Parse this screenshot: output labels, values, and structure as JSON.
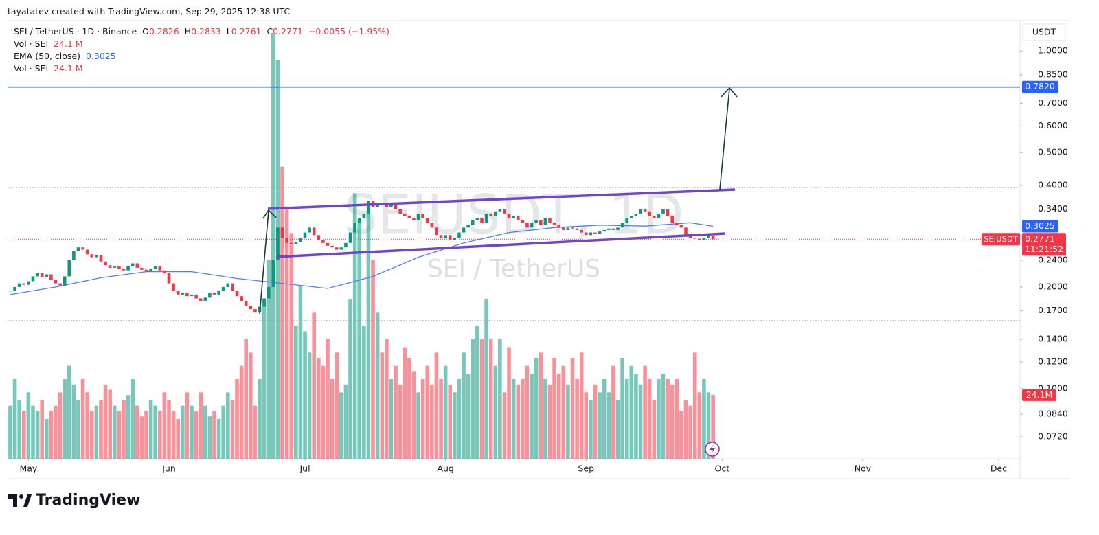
{
  "attribution": "tayatatev created with TradingView.com, Sep 29, 2025 12:38 UTC",
  "brand": "TradingView",
  "chart_data": {
    "type": "candlestick",
    "title": "SEI / TetherUS · 1D · Binance",
    "legend": {
      "o_label": "O",
      "open": "0.2826",
      "h_label": "H",
      "high": "0.2833",
      "l_label": "L",
      "low": "0.2761",
      "c_label": "C",
      "close": "0.2771",
      "change": "−0.0055 (−1.95%)",
      "vol_label": "Vol · SEI",
      "vol": "24.1 M",
      "ema_label": "EMA (50, close)",
      "ema": "0.3025",
      "vol2_label": "Vol · SEI",
      "vol2": "24.1 M"
    },
    "watermark": "SEIUSDT, 1D",
    "watermark_sub": "SEI / TetherUS",
    "currency": "USDT",
    "symbol_tag": "SEIUSDT",
    "countdown": "11:21:52",
    "log_scale": true,
    "grid": false,
    "xlim": [
      -0.6,
      222.7
    ],
    "xticks": [
      {
        "value": 4,
        "label": "May"
      },
      {
        "value": 35,
        "label": "Jun"
      },
      {
        "value": 65,
        "label": "Jul"
      },
      {
        "value": 96,
        "label": "Aug"
      },
      {
        "value": 127,
        "label": "Sep"
      },
      {
        "value": 157,
        "label": "Oct"
      },
      {
        "value": 188,
        "label": "Nov"
      },
      {
        "value": 218,
        "label": "Dec"
      }
    ],
    "ylim": [
      0.062,
      1.23
    ],
    "yticks": [
      {
        "value": 1,
        "label": "1.0000"
      },
      {
        "value": 0.85,
        "label": "0.8500"
      },
      {
        "value": 0.7,
        "label": "0.7000"
      },
      {
        "value": 0.6,
        "label": "0.6000"
      },
      {
        "value": 0.5,
        "label": "0.5000"
      },
      {
        "value": 0.4,
        "label": "0.4000"
      },
      {
        "value": 0.34,
        "label": "0.3400"
      },
      {
        "value": 0.24,
        "label": "0.2400"
      },
      {
        "value": 0.2,
        "label": "0.2000"
      },
      {
        "value": 0.17,
        "label": "0.1700"
      },
      {
        "value": 0.14,
        "label": "0.1400"
      },
      {
        "value": 0.12,
        "label": "0.1200"
      },
      {
        "value": 0.1,
        "label": "0.1000"
      },
      {
        "value": 0.084,
        "label": "0.0840"
      },
      {
        "value": 0.072,
        "label": "0.0720"
      }
    ],
    "color_up": "#089981",
    "color_down": "#f23645",
    "close": [
      0.195,
      0.2,
      0.205,
      0.203,
      0.208,
      0.215,
      0.22,
      0.214,
      0.218,
      0.21,
      0.205,
      0.202,
      0.215,
      0.24,
      0.255,
      0.262,
      0.258,
      0.25,
      0.245,
      0.248,
      0.238,
      0.232,
      0.228,
      0.23,
      0.226,
      0.224,
      0.231,
      0.235,
      0.228,
      0.225,
      0.222,
      0.226,
      0.23,
      0.224,
      0.22,
      0.205,
      0.195,
      0.19,
      0.192,
      0.188,
      0.19,
      0.185,
      0.182,
      0.186,
      0.192,
      0.19,
      0.195,
      0.2,
      0.205,
      0.195,
      0.188,
      0.182,
      0.176,
      0.172,
      0.168,
      0.175,
      0.185,
      0.2,
      0.24,
      0.3,
      0.28,
      0.27,
      0.268,
      0.272,
      0.28,
      0.29,
      0.3,
      0.285,
      0.275,
      0.27,
      0.265,
      0.262,
      0.258,
      0.262,
      0.27,
      0.29,
      0.31,
      0.32,
      0.33,
      0.36,
      0.345,
      0.355,
      0.35,
      0.345,
      0.35,
      0.34,
      0.33,
      0.325,
      0.32,
      0.315,
      0.33,
      0.32,
      0.31,
      0.3,
      0.285,
      0.28,
      0.285,
      0.275,
      0.28,
      0.29,
      0.3,
      0.305,
      0.315,
      0.32,
      0.31,
      0.33,
      0.325,
      0.335,
      0.34,
      0.33,
      0.32,
      0.325,
      0.315,
      0.31,
      0.3,
      0.31,
      0.315,
      0.305,
      0.32,
      0.31,
      0.305,
      0.3,
      0.295,
      0.3,
      0.298,
      0.295,
      0.29,
      0.285,
      0.29,
      0.288,
      0.292,
      0.295,
      0.298,
      0.295,
      0.3,
      0.31,
      0.32,
      0.325,
      0.33,
      0.34,
      0.335,
      0.325,
      0.32,
      0.33,
      0.34,
      0.325,
      0.31,
      0.305,
      0.3,
      0.285,
      0.28,
      0.278,
      0.276,
      0.28,
      0.283,
      0.2771
    ],
    "volume": {
      "vlim": [
        0,
        165
      ],
      "tag": "24.1M",
      "values": [
        20,
        30,
        22,
        18,
        25,
        20,
        18,
        22,
        15,
        18,
        20,
        25,
        30,
        35,
        28,
        22,
        30,
        25,
        18,
        20,
        22,
        28,
        26,
        20,
        18,
        22,
        24,
        30,
        20,
        16,
        18,
        22,
        20,
        18,
        25,
        22,
        18,
        15,
        20,
        25,
        20,
        18,
        25,
        20,
        16,
        18,
        15,
        20,
        25,
        22,
        30,
        35,
        45,
        40,
        20,
        30,
        60,
        75,
        160,
        150,
        110,
        95,
        85,
        50,
        65,
        48,
        40,
        55,
        38,
        35,
        45,
        30,
        40,
        25,
        28,
        60,
        100,
        90,
        50,
        95,
        75,
        55,
        40,
        45,
        30,
        35,
        28,
        42,
        38,
        33,
        25,
        30,
        35,
        28,
        40,
        30,
        35,
        28,
        25,
        30,
        40,
        32,
        45,
        50,
        45,
        60,
        45,
        35,
        45,
        25,
        42,
        30,
        28,
        30,
        35,
        32,
        38,
        40,
        30,
        28,
        38,
        32,
        35,
        28,
        38,
        30,
        40,
        25,
        22,
        28,
        25,
        30,
        25,
        35,
        22,
        38,
        30,
        35,
        32,
        28,
        35,
        30,
        22,
        30,
        32,
        30,
        28,
        30,
        18,
        22,
        20,
        40,
        25,
        30,
        25,
        24.1
      ]
    },
    "ema": {
      "color": "#4f7df9",
      "x": [
        0,
        10,
        20,
        30,
        40,
        50,
        60,
        70,
        80,
        90,
        100,
        110,
        120,
        130,
        140,
        150,
        155
      ],
      "values": [
        0.19,
        0.2,
        0.213,
        0.222,
        0.222,
        0.212,
        0.205,
        0.198,
        0.215,
        0.245,
        0.27,
        0.29,
        0.3,
        0.305,
        0.303,
        0.31,
        0.3025
      ]
    },
    "ema_tag": {
      "value": 0.3025,
      "label": "0.3025",
      "color": "#2962ff"
    },
    "price_tag": {
      "value": 0.2771,
      "label": "0.2771",
      "color": "#f23645"
    },
    "target_line": {
      "value": 0.782,
      "label": "0.7820",
      "color": "#2962ff"
    }
  }
}
